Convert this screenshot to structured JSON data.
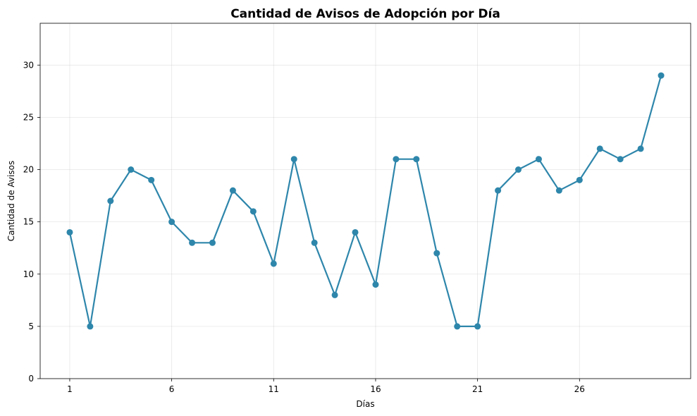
{
  "chart_data": {
    "type": "line",
    "title": "Cantidad de Avisos de Adopción por Día",
    "xlabel": "Días",
    "ylabel": "Cantidad de Avisos",
    "x": [
      1,
      2,
      3,
      4,
      5,
      6,
      7,
      8,
      9,
      10,
      11,
      12,
      13,
      14,
      15,
      16,
      17,
      18,
      19,
      20,
      21,
      22,
      23,
      24,
      25,
      26,
      27,
      28,
      29,
      30
    ],
    "series": [
      {
        "values": [
          14,
          5,
          17,
          20,
          19,
          15,
          13,
          13,
          18,
          16,
          11,
          21,
          13,
          8,
          14,
          9,
          21,
          21,
          12,
          5,
          5,
          18,
          20,
          21,
          18,
          19,
          22,
          21,
          22,
          29
        ],
        "color": "#2e86ab"
      }
    ],
    "xticks": [
      1,
      6,
      11,
      16,
      21,
      26
    ],
    "yticks": [
      0,
      5,
      10,
      15,
      20,
      25,
      30
    ],
    "xlim": [
      -0.45,
      31.45
    ],
    "ylim": [
      0,
      34
    ],
    "grid": true,
    "marker": "circle"
  }
}
